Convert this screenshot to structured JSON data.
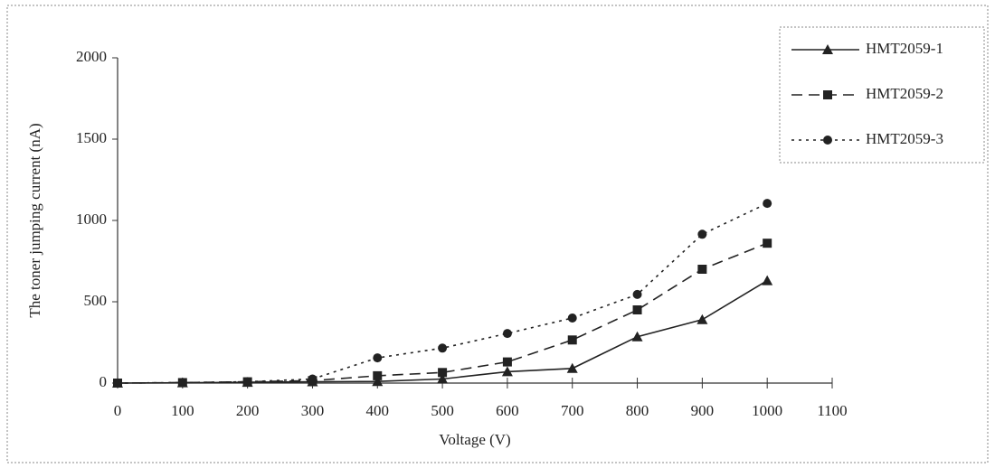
{
  "chart_data": {
    "type": "line",
    "x_label": "Voltage (V)",
    "y_label": "The toner jumping current (nA)",
    "x": [
      0,
      100,
      200,
      300,
      400,
      500,
      600,
      700,
      800,
      900,
      1000
    ],
    "xlim": [
      0,
      1100
    ],
    "xticks": [
      0,
      100,
      200,
      300,
      400,
      500,
      600,
      700,
      800,
      900,
      1000,
      1100
    ],
    "ylim": [
      0,
      2000
    ],
    "yticks": [
      0,
      500,
      1000,
      1500,
      2000
    ],
    "grid": false,
    "legend": "right",
    "series": [
      {
        "name": "HMT2059-1",
        "color": "#222222",
        "marker": "triangle",
        "dash": "solid",
        "values": [
          0,
          2,
          5,
          8,
          10,
          25,
          70,
          90,
          285,
          390,
          630
        ]
      },
      {
        "name": "HMT2059-2",
        "color": "#222222",
        "marker": "square",
        "dash": "dashed",
        "values": [
          0,
          3,
          8,
          15,
          45,
          65,
          130,
          265,
          450,
          700,
          860
        ]
      },
      {
        "name": "HMT2059-3",
        "color": "#222222",
        "marker": "circle",
        "dash": "dotted",
        "values": [
          0,
          3,
          8,
          25,
          155,
          215,
          305,
          400,
          545,
          915,
          1105
        ]
      }
    ]
  }
}
